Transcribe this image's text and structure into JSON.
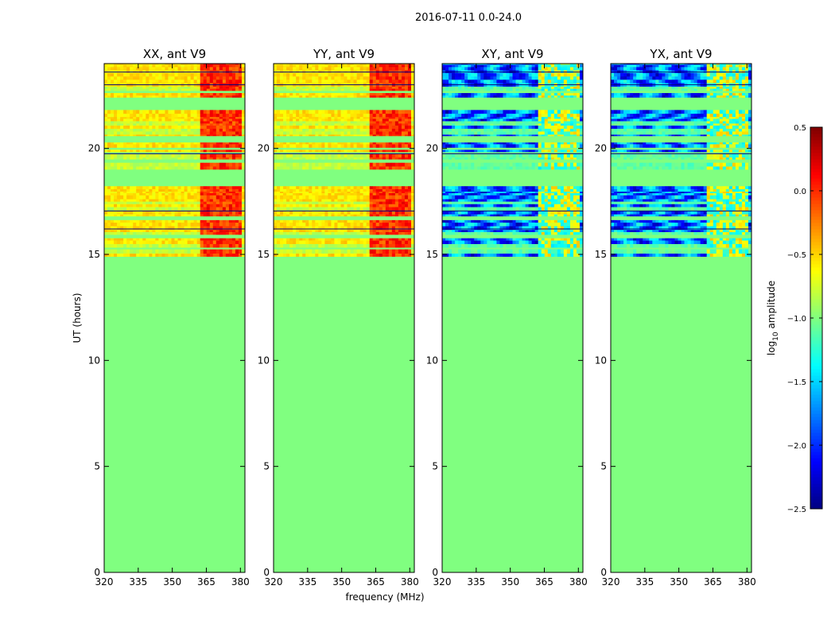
{
  "chart_data": {
    "type": "heatmap",
    "suptitle": "2016-07-11 0.0-24.0",
    "xlabel": "frequency (MHz)",
    "ylabel": "UT (hours)",
    "xlim": [
      320,
      382
    ],
    "ylim": [
      0,
      24
    ],
    "xticks": [
      320,
      335,
      350,
      365,
      380
    ],
    "yticks": [
      0,
      5,
      10,
      15,
      20
    ],
    "colormap": "jet",
    "colorbar": {
      "label": "log10 amplitude",
      "label_base": "log",
      "label_sub": "10",
      "label_rest": " amplitude",
      "range": [
        -2.5,
        0.5
      ],
      "ticks": [
        0.5,
        0.0,
        -0.5,
        -1.0,
        -1.5,
        -2.0,
        -2.5
      ],
      "tick_labels": [
        "0.5",
        "0.0",
        "−0.5",
        "−1.0",
        "−1.5",
        "−2.0",
        "−2.5"
      ]
    },
    "background_value": -1.0,
    "observed_ut_range": [
      14.9,
      24.0
    ],
    "rfi_band_mhz": [
      362,
      381
    ],
    "panels": [
      {
        "title": "XX, ant V9",
        "polarization": "XX",
        "typical_log_amp": -0.55,
        "rfi_log_amp": -0.1,
        "cross_pol": false
      },
      {
        "title": "YY, ant V9",
        "polarization": "YY",
        "typical_log_amp": -0.55,
        "rfi_log_amp": -0.1,
        "cross_pol": false
      },
      {
        "title": "XY, ant V9",
        "polarization": "XY",
        "typical_log_amp": -1.8,
        "rfi_log_amp": -0.7,
        "cross_pol": true
      },
      {
        "title": "YX, ant V9",
        "polarization": "YX",
        "typical_log_amp": -1.8,
        "rfi_log_amp": -0.7,
        "cross_pol": true
      }
    ]
  }
}
